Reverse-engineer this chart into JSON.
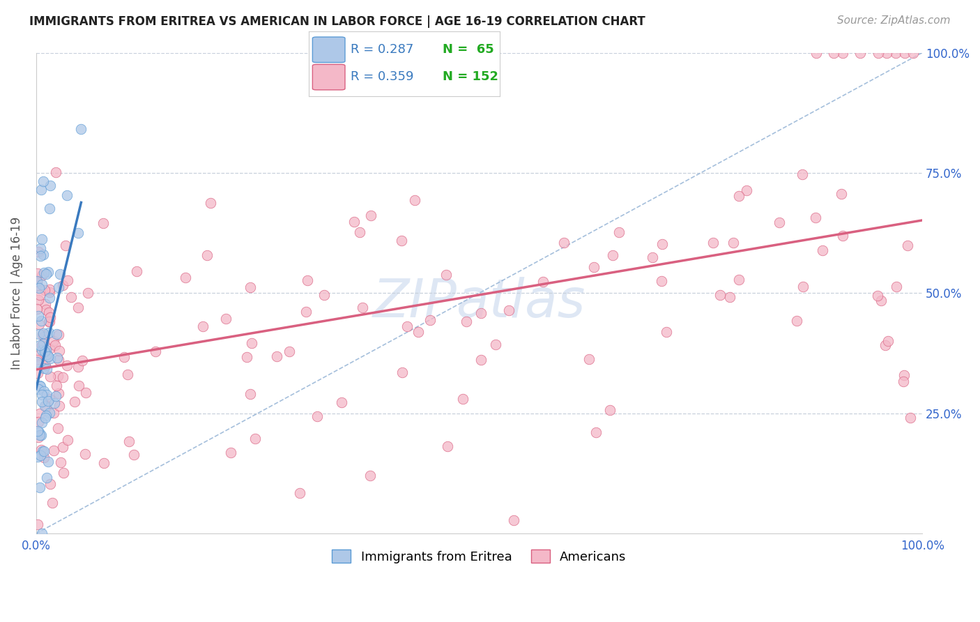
{
  "title": "IMMIGRANTS FROM ERITREA VS AMERICAN IN LABOR FORCE | AGE 16-19 CORRELATION CHART",
  "source": "Source: ZipAtlas.com",
  "ylabel": "In Labor Force | Age 16-19",
  "legend_r1": "R = 0.287",
  "legend_n1": "N =  65",
  "legend_r2": "R = 0.359",
  "legend_n2": "N = 152",
  "color_blue_fill": "#aec8e8",
  "color_blue_edge": "#5b9bd5",
  "color_blue_line": "#3a7abf",
  "color_pink_fill": "#f4b8c8",
  "color_pink_edge": "#d96080",
  "color_pink_line": "#d96080",
  "color_diag": "#9bb8d8",
  "color_r_blue": "#3a7abf",
  "color_n_green": "#22aa22",
  "color_n_blue": "#3366cc",
  "watermark_text": "ZIPatlas",
  "watermark_color": "#c8d8ee",
  "title_fontsize": 12,
  "source_fontsize": 11,
  "tick_fontsize": 12,
  "ylabel_fontsize": 12
}
